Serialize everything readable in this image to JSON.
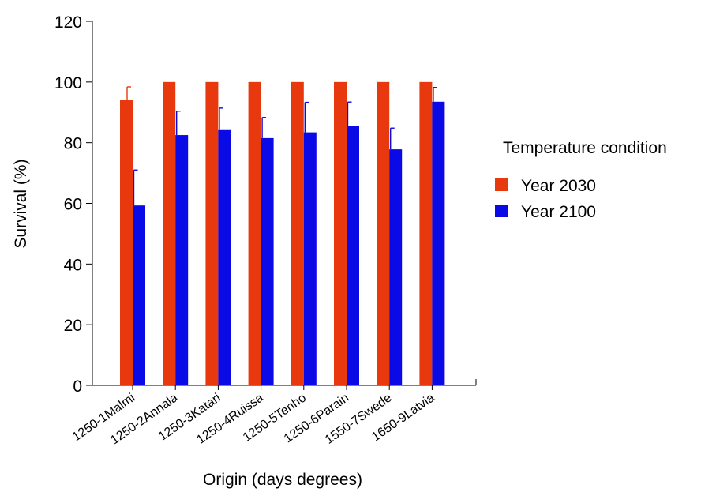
{
  "chart_data": {
    "type": "bar",
    "xlabel": "Origin (days degrees)",
    "ylabel": "Survival (%)",
    "ylim": [
      0,
      120
    ],
    "yticks": [
      0,
      20,
      40,
      60,
      80,
      100,
      120
    ],
    "grid": false,
    "categories": [
      "1250-1Malmi",
      "1250-2Annala",
      "1250-3Katari",
      "1250-4Ruissa",
      "1250-5Tenho",
      "1250-6Parain",
      "1550-7Swede",
      "1650-9Latvia"
    ],
    "series": [
      {
        "name": "Year 2030",
        "color": "#e8380d",
        "values": [
          94.2,
          100,
          100,
          100,
          100,
          100,
          100,
          100
        ],
        "errors": [
          4.2,
          0,
          0,
          0,
          0,
          0,
          0,
          0
        ]
      },
      {
        "name": "Year 2100",
        "color": "#0a0ae6",
        "values": [
          59.3,
          82.5,
          84.4,
          81.5,
          83.4,
          85.5,
          77.8,
          93.5
        ],
        "errors": [
          11.7,
          7.9,
          7.0,
          6.8,
          9.9,
          7.9,
          7.0,
          4.7
        ]
      }
    ],
    "legend": {
      "title": "Temperature condition",
      "position": "right"
    }
  }
}
